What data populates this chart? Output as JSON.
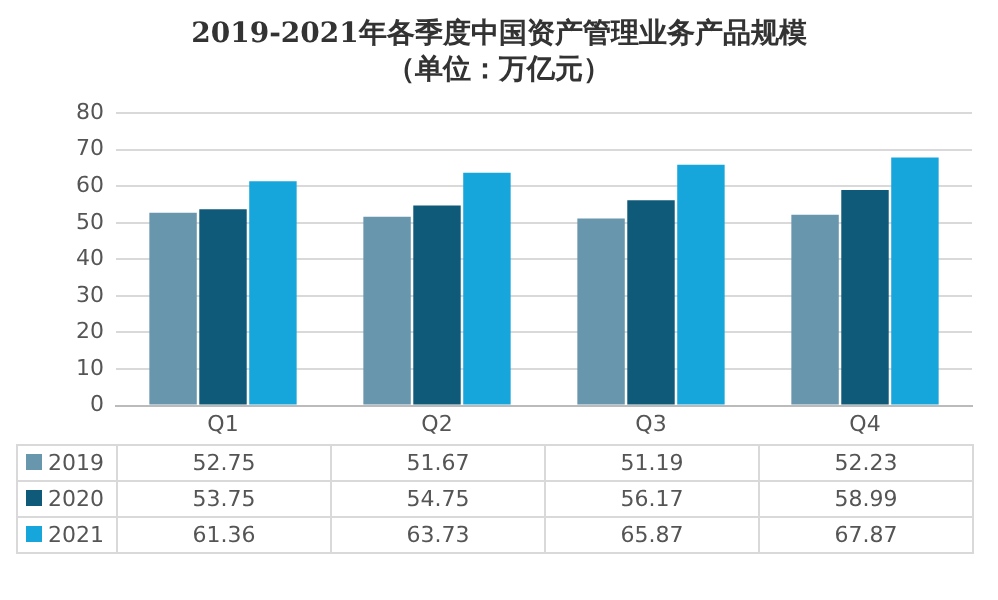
{
  "chart_data": {
    "type": "bar",
    "title": "2019-2021年各季度中国资产管理业务产品规模（单位：万亿元）",
    "categories": [
      "Q1",
      "Q2",
      "Q3",
      "Q4"
    ],
    "series": [
      {
        "name": "2019",
        "color": "#6796ad",
        "values": [
          52.75,
          51.67,
          51.19,
          52.23
        ]
      },
      {
        "name": "2020",
        "color": "#0e5a78",
        "values": [
          53.75,
          54.75,
          56.17,
          58.99
        ]
      },
      {
        "name": "2021",
        "color": "#17a6dc",
        "values": [
          61.36,
          63.73,
          65.87,
          67.87
        ]
      }
    ],
    "ylim": [
      0,
      80
    ],
    "yticks": [
      0,
      10,
      20,
      30,
      40,
      50,
      60,
      70,
      80
    ],
    "grid": "y",
    "legend": "bottom",
    "data_labels": true
  }
}
